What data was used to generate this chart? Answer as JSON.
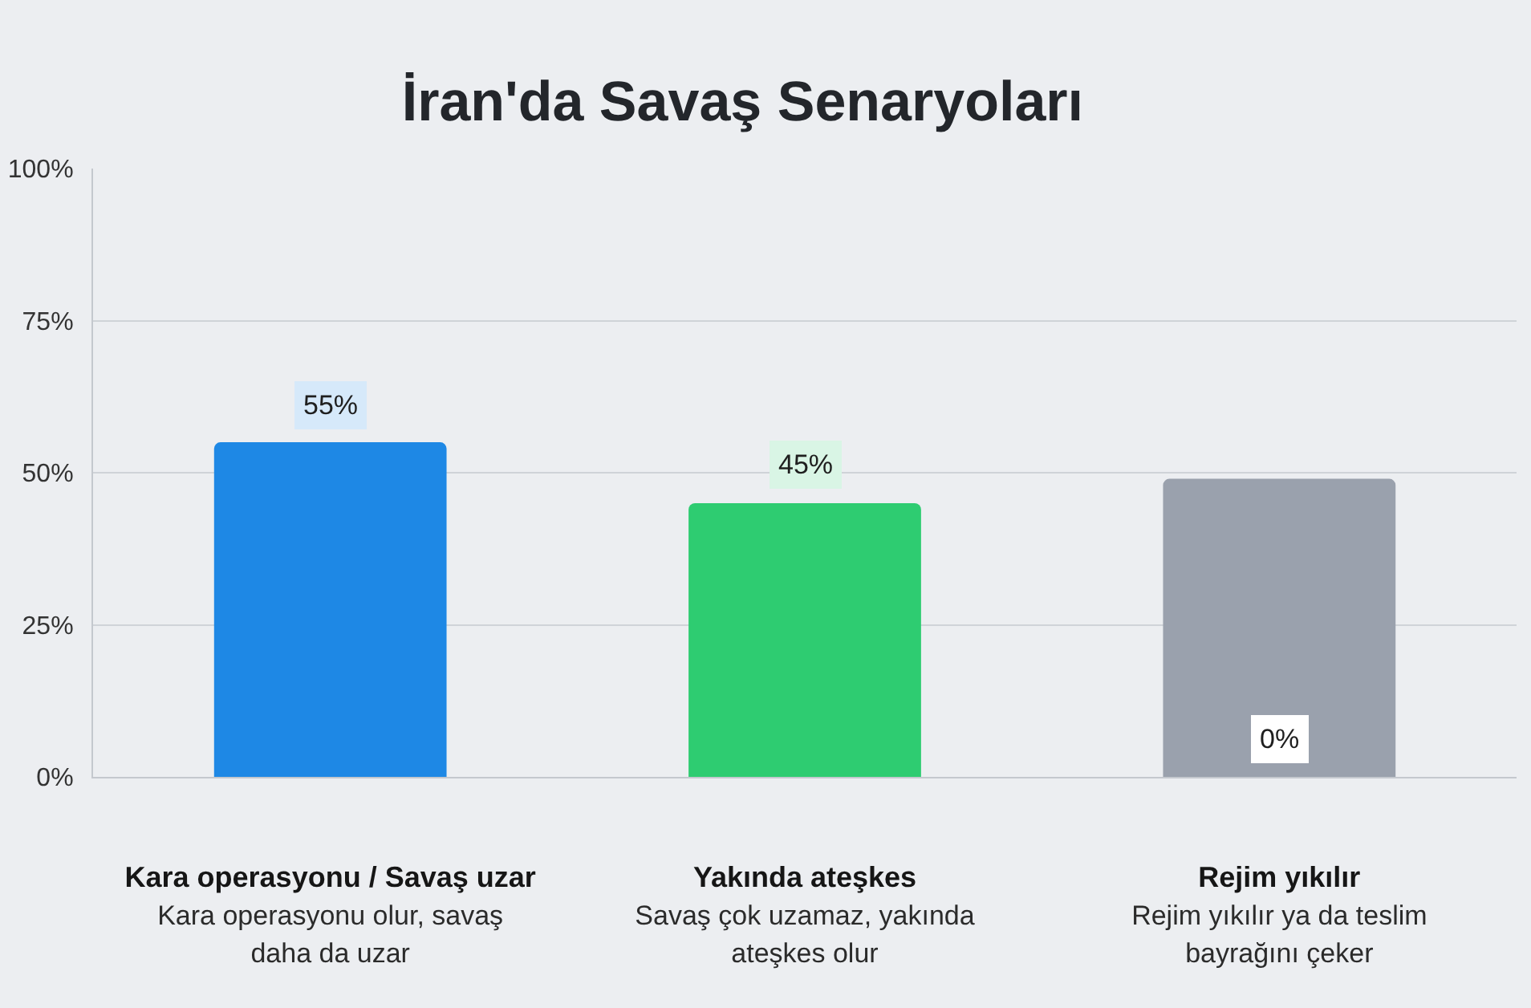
{
  "chart_data": {
    "type": "bar",
    "title": "İran'da Savaş Senaryoları",
    "categories": [
      "Kara operasyonu / Savaş uzar\nKara operasyonu olur, savaş\ndaha da uzar",
      "Yakında ateşkes\nSavaş çok uzamaz, yakında\nateşkes olur",
      "Rejim yıkılır\nRejim yıkılır ya da teslim\nbayrağını çeker"
    ],
    "values": [
      55,
      45,
      49
    ],
    "colors": [
      "#1e88e5",
      "#2ecc71",
      "#9aa1ad"
    ],
    "value_labels": [
      "55%",
      "45%",
      null
    ],
    "annotations": [
      {
        "text": "0%",
        "x": "Rejim yıkılır\nRejim yıkılır ya da teslim\nbayrağını çeker",
        "y": 0
      }
    ],
    "ylim": [
      0,
      100
    ],
    "yticks": [
      {
        "value": 0,
        "label": "0%"
      },
      {
        "value": 25,
        "label": "25%"
      },
      {
        "value": 50,
        "label": "50%"
      },
      {
        "value": 75,
        "label": "75%"
      },
      {
        "value": 100,
        "label": "100%"
      }
    ],
    "grid": "y"
  }
}
